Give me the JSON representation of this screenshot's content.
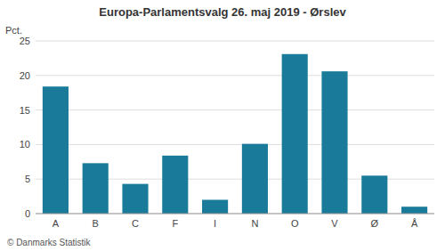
{
  "chart_data": {
    "type": "bar",
    "title": "Europa-Parlamentsvalg 26. maj 2019 - Ørslev",
    "y_label": "Pct.",
    "footer": "© Danmarks Statistik",
    "categories": [
      "A",
      "B",
      "C",
      "F",
      "I",
      "N",
      "O",
      "V",
      "Ø",
      "Å"
    ],
    "values": [
      18.4,
      7.3,
      4.3,
      8.4,
      2.0,
      10.1,
      23.1,
      20.6,
      5.5,
      1.0
    ],
    "color": "#1a7a99",
    "ylim": [
      0,
      25
    ],
    "yticks": [
      0,
      5,
      10,
      15,
      20,
      25
    ],
    "grid": true
  }
}
